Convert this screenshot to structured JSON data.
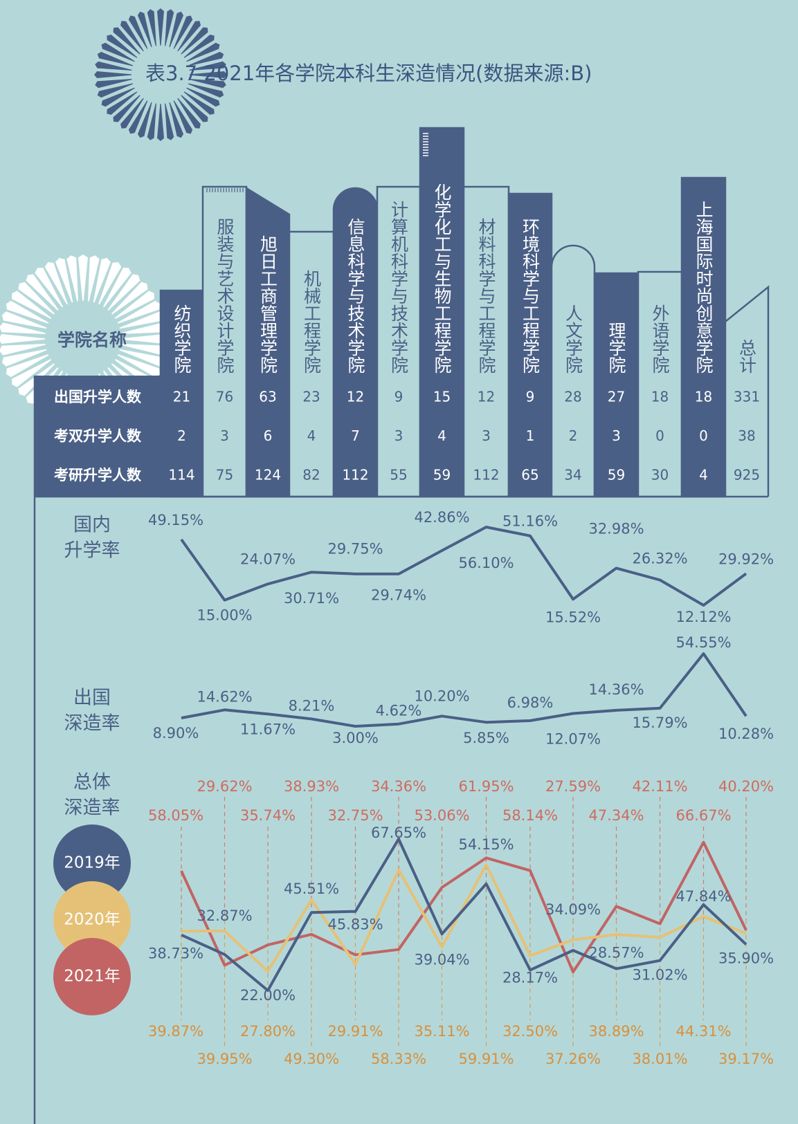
{
  "title": "表3.7  2021年各学院本科生深造情况(数据来源:B)",
  "table": {
    "header": "学院名称",
    "columns": [
      "纺织学院",
      "服装与艺术设计学院",
      "旭日工商管理学院",
      "机械工程学院",
      "信息科学与技术学院",
      "计算机科学与技术学院",
      "化学化工与生物工程学院",
      "材料科学与工程学院",
      "环境科学与工程学院",
      "人文学院",
      "理学院",
      "外语学院",
      "上海国际时尚创意学院",
      "总计"
    ],
    "rows": [
      {
        "label": "出国升学人数",
        "values": [
          21,
          76,
          63,
          23,
          12,
          9,
          15,
          12,
          9,
          28,
          27,
          18,
          18,
          331
        ]
      },
      {
        "label": "考双升学人数",
        "values": [
          2,
          3,
          6,
          4,
          7,
          3,
          4,
          3,
          1,
          2,
          3,
          0,
          0,
          38
        ]
      },
      {
        "label": "考研升学人数",
        "values": [
          114,
          75,
          124,
          82,
          112,
          55,
          59,
          112,
          65,
          34,
          59,
          30,
          4,
          925
        ]
      }
    ]
  },
  "chart_data": [
    {
      "type": "line",
      "label": [
        "国内",
        "升学率"
      ],
      "color": "#4a5f86",
      "values": [
        49.15,
        15.0,
        24.07,
        30.71,
        29.75,
        29.74,
        42.86,
        56.1,
        51.16,
        15.52,
        32.98,
        26.32,
        12.12,
        29.92
      ],
      "value_labels": [
        "49.15%",
        "15.00%",
        "24.07%",
        "30.71%",
        "29.75%",
        "29.74%",
        "42.86%",
        "56.10%",
        "51.16%",
        "15.52%",
        "32.98%",
        "26.32%",
        "12.12%",
        "29.92%"
      ]
    },
    {
      "type": "line",
      "label": [
        "出国",
        "深造率"
      ],
      "color": "#4a5f86",
      "values": [
        8.9,
        14.62,
        11.67,
        8.21,
        3.0,
        4.62,
        10.2,
        5.85,
        6.98,
        12.07,
        14.36,
        15.79,
        54.55,
        10.28
      ],
      "value_labels": [
        "8.90%",
        "14.62%",
        "11.67%",
        "8.21%",
        "3.00%",
        "4.62%",
        "10.20%",
        "5.85%",
        "6.98%",
        "12.07%",
        "14.36%",
        "15.79%",
        "54.55%",
        "10.28%"
      ]
    },
    {
      "type": "line",
      "label": [
        "总体",
        "深造率"
      ],
      "series": [
        {
          "name": "2019年",
          "color": "#4a5f86",
          "values": [
            38.73,
            32.87,
            22.0,
            45.51,
            45.83,
            67.65,
            39.04,
            54.15,
            28.17,
            34.09,
            28.57,
            31.02,
            47.84,
            35.9
          ],
          "value_labels": [
            "38.73%",
            "32.87%",
            "22.00%",
            "45.51%",
            "45.83%",
            "67.65%",
            "39.04%",
            "54.15%",
            "28.17%",
            "34.09%",
            "28.57%",
            "31.02%",
            "47.84%",
            "35.90%"
          ]
        },
        {
          "name": "2020年",
          "color": "#e5c177",
          "values": [
            39.87,
            39.95,
            27.8,
            49.3,
            29.91,
            58.33,
            35.11,
            59.91,
            32.5,
            37.26,
            38.89,
            38.01,
            44.31,
            39.17
          ],
          "value_labels": [
            "39.87%",
            "39.95%",
            "27.80%",
            "49.30%",
            "29.91%",
            "58.33%",
            "35.11%",
            "59.91%",
            "32.50%",
            "37.26%",
            "38.89%",
            "38.01%",
            "44.31%",
            "39.17%"
          ]
        },
        {
          "name": "2021年",
          "color": "#c26464",
          "values": [
            58.05,
            29.62,
            35.74,
            38.93,
            32.75,
            34.36,
            53.06,
            61.95,
            58.14,
            27.59,
            47.34,
            42.11,
            66.67,
            40.2
          ],
          "value_labels": [
            "58.05%",
            "29.62%",
            "35.74%",
            "38.93%",
            "32.75%",
            "34.36%",
            "53.06%",
            "61.95%",
            "58.14%",
            "27.59%",
            "47.34%",
            "42.11%",
            "66.67%",
            "40.20%"
          ]
        }
      ]
    }
  ]
}
